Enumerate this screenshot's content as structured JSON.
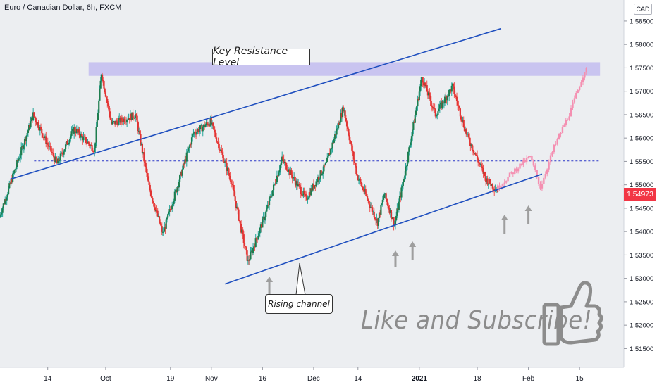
{
  "header": {
    "symbol": "Euro / Canadian Dollar, 6h, FXCM",
    "currency": "CAD"
  },
  "annotations": {
    "resistance_label": "Key Resistance Level",
    "channel_label": "Rising channel",
    "promo_text": "Like and Subscribe!"
  },
  "last_price": "1.54973",
  "colors": {
    "up": "#26a69a",
    "up_body": "#1e7d4e",
    "down": "#ef5350",
    "down_body": "#e03333",
    "projection": "#f48fb1",
    "channel": "#1f4fbf",
    "zone": "#c5bff0",
    "dashed": "#2a36c7",
    "arrow": "#9e9e9e",
    "price_tag": "#f23645",
    "background": "#eceef1"
  },
  "chart_data": {
    "type": "candlestick",
    "instrument": "Euro / Canadian Dollar",
    "timeframe": "6h",
    "source": "FXCM",
    "y_ticks": [
      "1.58500",
      "1.58000",
      "1.57500",
      "1.57000",
      "1.56500",
      "1.56000",
      "1.55500",
      "1.55000",
      "1.54500",
      "1.54000",
      "1.53500",
      "1.53000",
      "1.52500",
      "1.52000",
      "1.51500"
    ],
    "y_tick_values": [
      1.585,
      1.58,
      1.575,
      1.57,
      1.565,
      1.56,
      1.555,
      1.55,
      1.545,
      1.54,
      1.535,
      1.53,
      1.525,
      1.52,
      1.515
    ],
    "ylim": [
      1.511,
      1.5895
    ],
    "x_ticks": [
      "14",
      "Oct",
      "19",
      "Nov",
      "16",
      "Dec",
      "14",
      "2021",
      "18",
      "Feb",
      "15"
    ],
    "x_tick_days": [
      14,
      31,
      50,
      62,
      77,
      92,
      105,
      123,
      140,
      155,
      170
    ],
    "xlim": [
      0,
      183
    ],
    "last_price": 1.54973,
    "resistance_zone": [
      1.5733,
      1.5762
    ],
    "dashed_level": 1.5551,
    "channel_upper": {
      "start": [
        3,
        1.5512
      ],
      "end": [
        147,
        1.5834
      ]
    },
    "channel_lower": {
      "start": [
        66,
        1.5288
      ],
      "end": [
        159,
        1.5523
      ]
    },
    "key_points": [
      {
        "day": 0,
        "price": 1.543
      },
      {
        "day": 10,
        "price": 1.565
      },
      {
        "day": 17,
        "price": 1.5545
      },
      {
        "day": 22,
        "price": 1.562
      },
      {
        "day": 28,
        "price": 1.5575
      },
      {
        "day": 30,
        "price": 1.574
      },
      {
        "day": 33,
        "price": 1.563
      },
      {
        "day": 40,
        "price": 1.565
      },
      {
        "day": 44,
        "price": 1.5495
      },
      {
        "day": 48,
        "price": 1.5395
      },
      {
        "day": 57,
        "price": 1.561
      },
      {
        "day": 62,
        "price": 1.5635
      },
      {
        "day": 68,
        "price": 1.551
      },
      {
        "day": 73,
        "price": 1.5335
      },
      {
        "day": 78,
        "price": 1.5435
      },
      {
        "day": 83,
        "price": 1.5555
      },
      {
        "day": 90,
        "price": 1.547
      },
      {
        "day": 96,
        "price": 1.5545
      },
      {
        "day": 101,
        "price": 1.5665
      },
      {
        "day": 105,
        "price": 1.552
      },
      {
        "day": 111,
        "price": 1.542
      },
      {
        "day": 113,
        "price": 1.548
      },
      {
        "day": 116,
        "price": 1.5415
      },
      {
        "day": 119,
        "price": 1.5525
      },
      {
        "day": 124,
        "price": 1.573
      },
      {
        "day": 128,
        "price": 1.565
      },
      {
        "day": 133,
        "price": 1.571
      },
      {
        "day": 137,
        "price": 1.561
      },
      {
        "day": 143,
        "price": 1.551
      },
      {
        "day": 146,
        "price": 1.549
      }
    ],
    "projection_points": [
      {
        "day": 146,
        "price": 1.549
      },
      {
        "day": 152,
        "price": 1.5535
      },
      {
        "day": 156,
        "price": 1.556
      },
      {
        "day": 159,
        "price": 1.5495
      },
      {
        "day": 163,
        "price": 1.558
      },
      {
        "day": 168,
        "price": 1.566
      },
      {
        "day": 172,
        "price": 1.5745
      }
    ],
    "arrow_marks_days": [
      79,
      116,
      121,
      148,
      155
    ]
  }
}
